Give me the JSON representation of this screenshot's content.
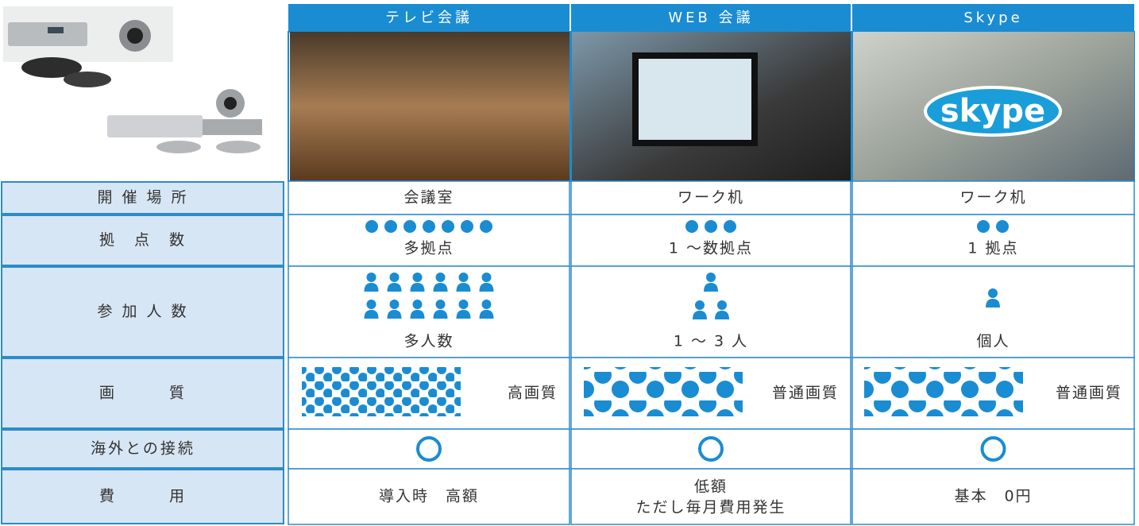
{
  "columns": [
    "テレビ会議",
    "WEB 会議",
    "Skype"
  ],
  "rows": [
    {
      "label": "開 催 場 所",
      "cells": [
        "会議室",
        "ワーク机",
        "ワーク机"
      ]
    },
    {
      "label": "拠　点　数",
      "cells": [
        "多拠点",
        "1 〜数拠点",
        "1 拠点"
      ]
    },
    {
      "label": "参 加 人 数",
      "cells": [
        "多人数",
        "1 〜 3 人",
        "個人"
      ]
    },
    {
      "label": "画　　　質",
      "cells": [
        "高画質",
        "普通画質",
        "普通画質"
      ]
    },
    {
      "label": "海外との接続"
    },
    {
      "label": "費　　　用",
      "cells": [
        "導入時　高額",
        [
          "低額",
          "ただし毎月費用発生"
        ],
        "基本　0円"
      ]
    }
  ]
}
